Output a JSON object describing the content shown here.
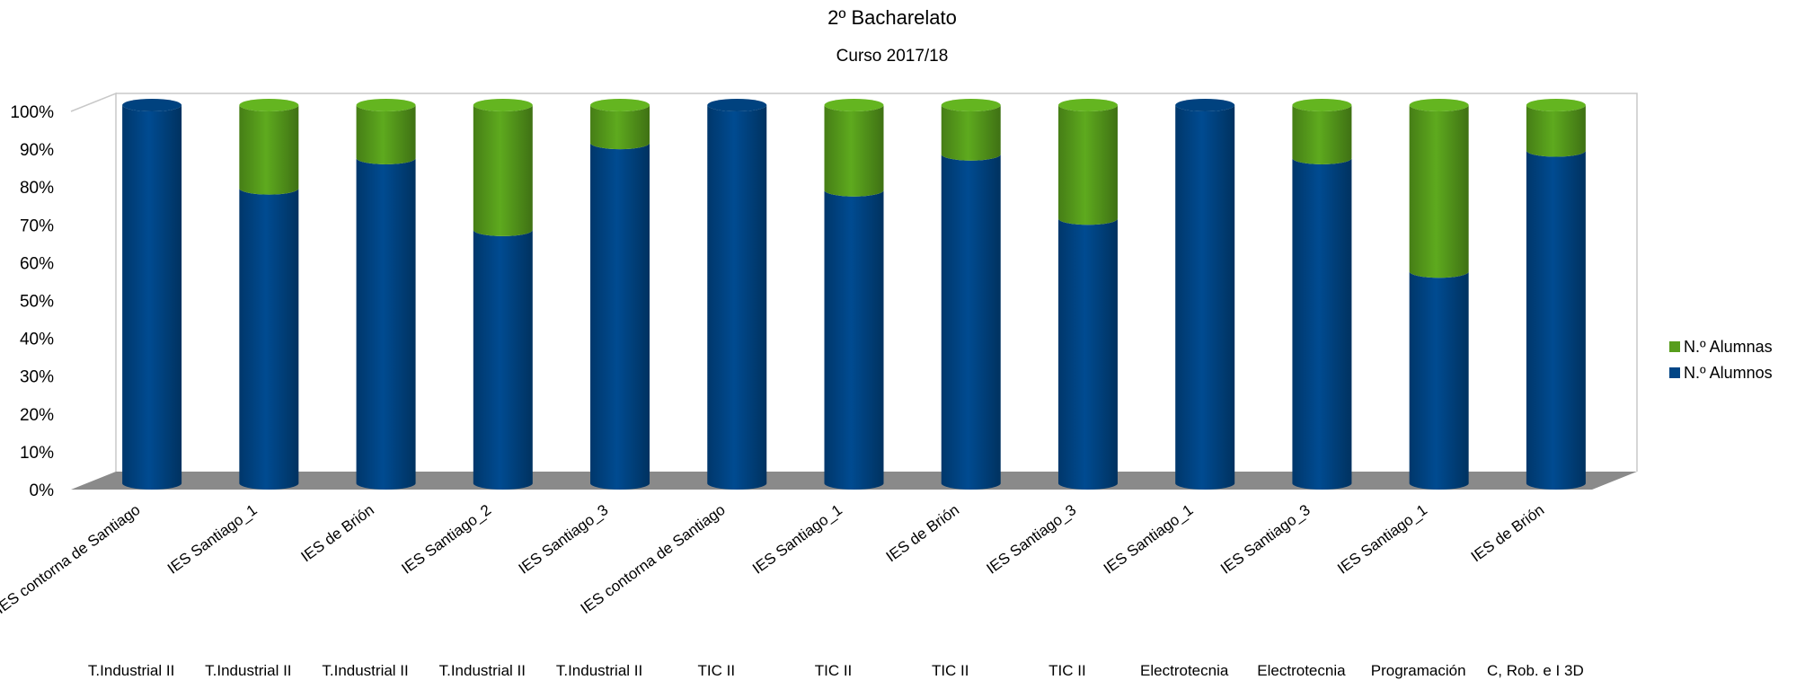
{
  "chart_data": {
    "type": "bar",
    "stacked": true,
    "percent_stacked": true,
    "title": "2º Bacharelato",
    "subtitle": "Curso 2017/18",
    "yticks": [
      "0%",
      "10%",
      "20%",
      "30%",
      "40%",
      "50%",
      "60%",
      "70%",
      "80%",
      "90%",
      "100%"
    ],
    "ylim": [
      0,
      100
    ],
    "legend_position": "right",
    "categories": [
      {
        "school": "IES contorna de Santiago",
        "subject": "T.Industrial II"
      },
      {
        "school": "IES Santiago_1",
        "subject": "T.Industrial II"
      },
      {
        "school": "IES de Brión",
        "subject": "T.Industrial II"
      },
      {
        "school": "IES Santiago_2",
        "subject": "T.Industrial II"
      },
      {
        "school": "IES Santiago_3",
        "subject": "T.Industrial II"
      },
      {
        "school": "IES contorna de Santiago",
        "subject": "TIC II"
      },
      {
        "school": "IES Santiago_1",
        "subject": "TIC II"
      },
      {
        "school": "IES de Brión",
        "subject": "TIC II"
      },
      {
        "school": "IES Santiago_3",
        "subject": "TIC II"
      },
      {
        "school": "IES Santiago_1",
        "subject": "Electrotecnia"
      },
      {
        "school": "IES Santiago_3",
        "subject": "Electrotecnia"
      },
      {
        "school": "IES Santiago_1",
        "subject": "Programación"
      },
      {
        "school": "IES de Brión",
        "subject": "C, Rob. e I 3D"
      }
    ],
    "series": [
      {
        "name": "N.º Alumnos",
        "color": "#004586",
        "values": [
          100,
          78,
          86,
          67,
          90,
          100,
          77.5,
          87,
          70,
          100,
          86,
          56,
          88
        ]
      },
      {
        "name": "N.º Alumnas",
        "color": "#579d1c",
        "values": [
          0,
          22,
          14,
          33,
          10,
          0,
          22.5,
          13,
          30,
          0,
          14,
          44,
          12
        ]
      }
    ]
  }
}
